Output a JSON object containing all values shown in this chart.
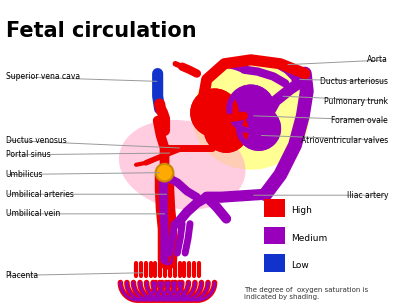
{
  "title": "Fetal circulation",
  "title_fontsize": 15,
  "title_fontweight": "bold",
  "background_color": "#ffffff",
  "colors": {
    "high": "#ee0000",
    "medium": "#9900bb",
    "low": "#1133cc",
    "heart_yellow": "#ffff88",
    "liver_pink": "#ffaacc",
    "orange": "#ffaa00",
    "line_color": "#999999"
  },
  "legend": [
    {
      "label": "High",
      "color": "#ee0000"
    },
    {
      "label": "Medium",
      "color": "#9900bb"
    },
    {
      "label": "Low",
      "color": "#1133cc"
    }
  ],
  "legend_note": "The degree of  oxygen saturation is\nindicated by shading."
}
